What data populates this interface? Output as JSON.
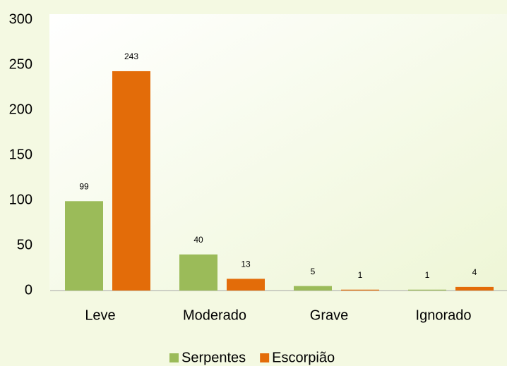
{
  "chart_data": {
    "type": "bar",
    "categories": [
      "Leve",
      "Moderado",
      "Grave",
      "Ignorado"
    ],
    "series": [
      {
        "name": "Serpentes",
        "color": "#9bbb59",
        "values": [
          99,
          40,
          5,
          1
        ]
      },
      {
        "name": "Escorpião",
        "color": "#e36c09",
        "values": [
          243,
          13,
          1,
          4
        ]
      }
    ],
    "ylim": [
      0,
      300
    ],
    "yticks": [
      0,
      50,
      100,
      150,
      200,
      250,
      300
    ],
    "grid": false,
    "legend": "bottom"
  }
}
